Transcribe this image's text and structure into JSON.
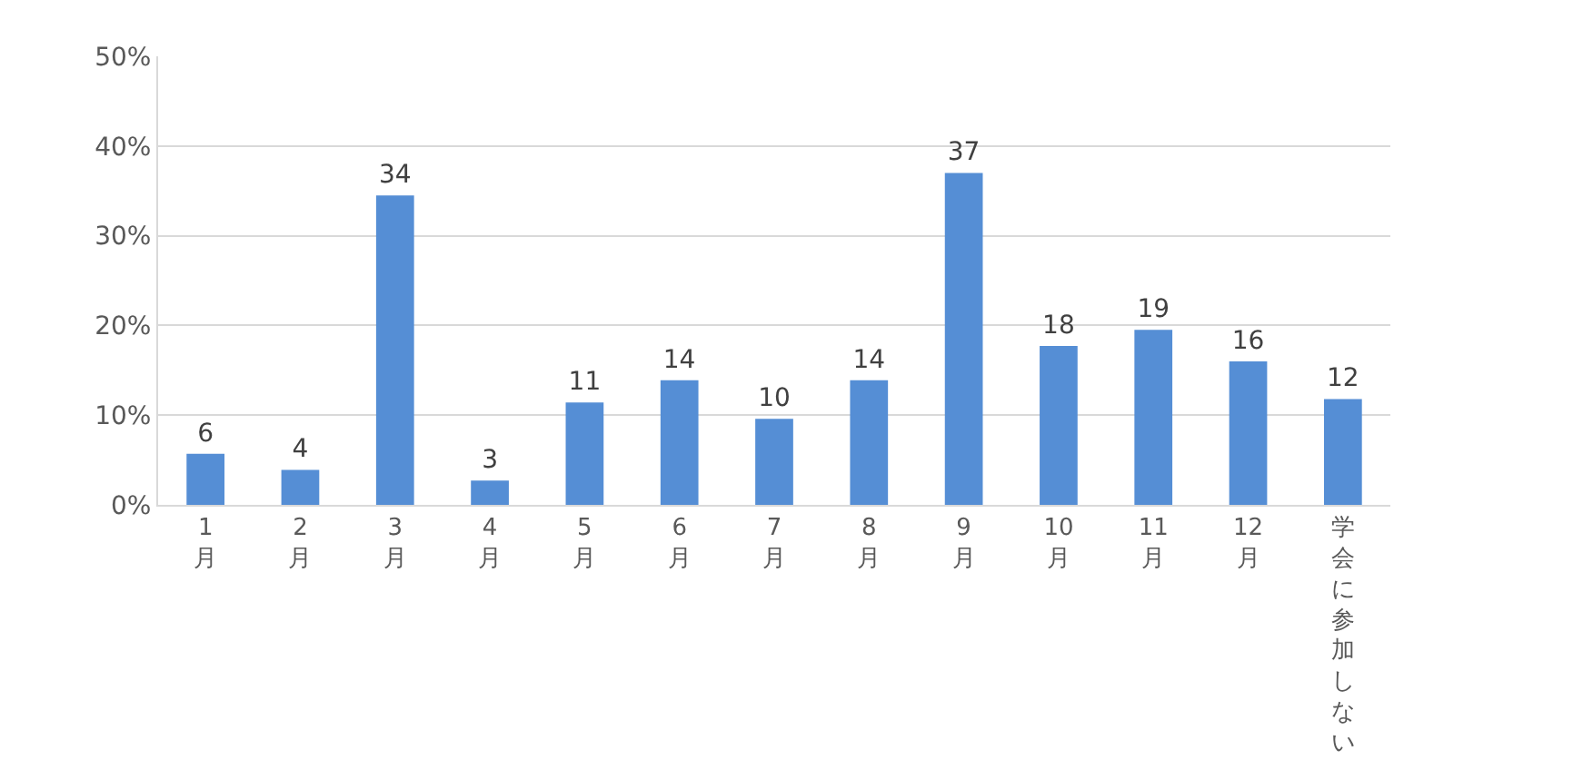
{
  "chart_data": {
    "type": "bar",
    "categories": [
      "1月",
      "2月",
      "3月",
      "4月",
      "5月",
      "6月",
      "7月",
      "8月",
      "9月",
      "10月",
      "11月",
      "12月",
      "学会に参加しない"
    ],
    "values": [
      5.7,
      3.9,
      34.5,
      2.7,
      11.4,
      13.9,
      9.6,
      13.9,
      37,
      17.7,
      19.5,
      16,
      11.8
    ],
    "value_labels": [
      "6",
      "4",
      "34",
      "3",
      "11",
      "14",
      "10",
      "14",
      "37",
      "18",
      "19",
      "16",
      "12"
    ],
    "color": "#558ed5",
    "ylim": [
      0,
      50
    ],
    "yticks": [
      {
        "value": 0,
        "label": "0%"
      },
      {
        "value": 10,
        "label": "10%"
      },
      {
        "value": 20,
        "label": "20%"
      },
      {
        "value": 30,
        "label": "30%"
      },
      {
        "value": 40,
        "label": "40%"
      },
      {
        "value": 50,
        "label": "50%"
      }
    ],
    "grid": "y",
    "legend": false
  }
}
